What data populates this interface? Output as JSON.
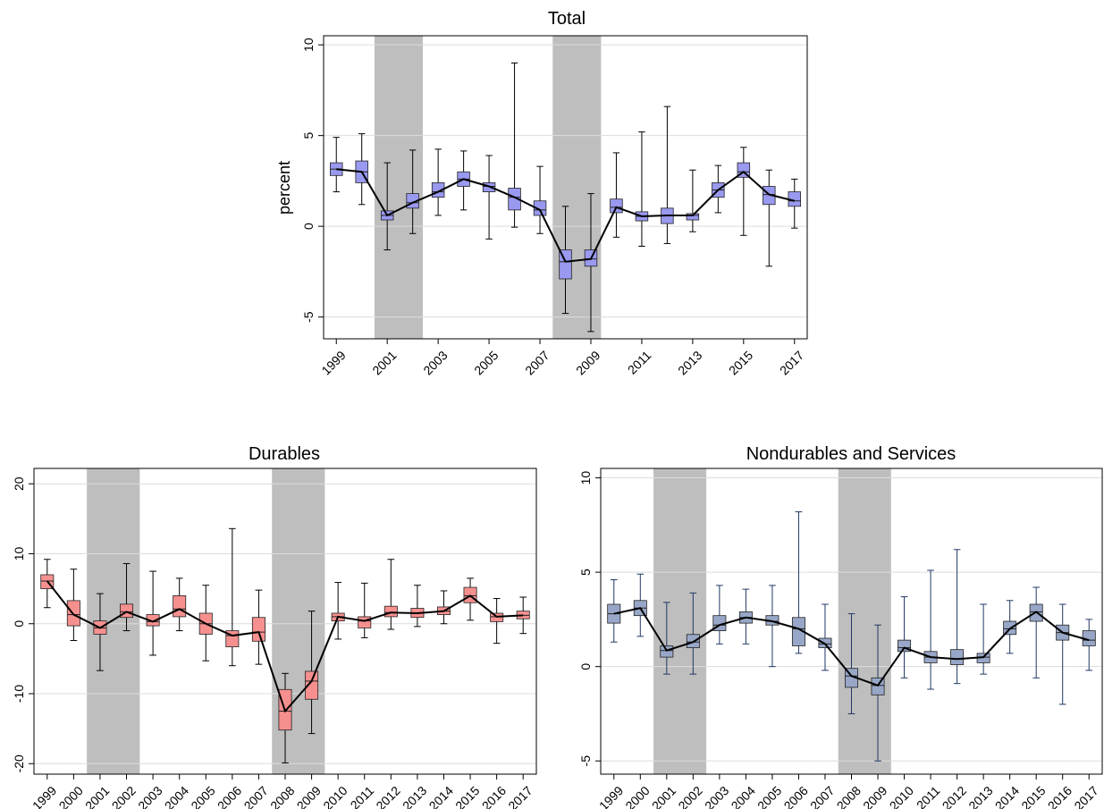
{
  "colors": {
    "recession_band": "#bebebe",
    "grid": "#dcdcdc",
    "total_box": "#9999f0",
    "total_whisker": "#000000",
    "durables_box": "#f5908f",
    "durables_whisker": "#000000",
    "nondurables_box": "#98a7c7",
    "nondurables_whisker": "#1f3864",
    "median_line": "#000000"
  },
  "chart_data": [
    {
      "id": "total",
      "type": "box",
      "title": "Total",
      "ylabel": "percent",
      "ylim": [
        -6.2,
        10.5
      ],
      "yticks": [
        -5,
        0,
        5,
        10
      ],
      "years": [
        1999,
        2000,
        2001,
        2002,
        2003,
        2004,
        2005,
        2006,
        2007,
        2008,
        2009,
        2010,
        2011,
        2012,
        2013,
        2014,
        2015,
        2016,
        2017
      ],
      "xtick_labels": [
        "1999",
        "2001",
        "2003",
        "2005",
        "2007",
        "2009",
        "2011",
        "2013",
        "2015",
        "2017"
      ],
      "recessions": [
        [
          2001,
          2002
        ],
        [
          2008,
          2009
        ]
      ],
      "boxes": [
        {
          "year": 1999,
          "whisker_low": 1.9,
          "q1": 2.8,
          "median": 3.15,
          "q3": 3.5,
          "whisker_high": 4.9
        },
        {
          "year": 2000,
          "whisker_low": 1.2,
          "q1": 2.4,
          "median": 3.0,
          "q3": 3.6,
          "whisker_high": 5.1
        },
        {
          "year": 2001,
          "whisker_low": -1.3,
          "q1": 0.35,
          "median": 0.6,
          "q3": 0.85,
          "whisker_high": 3.5
        },
        {
          "year": 2002,
          "whisker_low": -0.4,
          "q1": 1.0,
          "median": 1.3,
          "q3": 1.8,
          "whisker_high": 4.2
        },
        {
          "year": 2003,
          "whisker_low": 0.6,
          "q1": 1.6,
          "median": 1.9,
          "q3": 2.4,
          "whisker_high": 4.25
        },
        {
          "year": 2004,
          "whisker_low": 0.9,
          "q1": 2.2,
          "median": 2.6,
          "q3": 3.0,
          "whisker_high": 4.15
        },
        {
          "year": 2005,
          "whisker_low": -0.7,
          "q1": 1.9,
          "median": 2.2,
          "q3": 2.4,
          "whisker_high": 3.9
        },
        {
          "year": 2006,
          "whisker_low": -0.05,
          "q1": 0.9,
          "median": 1.6,
          "q3": 2.1,
          "whisker_high": 9.0
        },
        {
          "year": 2007,
          "whisker_low": -0.4,
          "q1": 0.6,
          "median": 0.9,
          "q3": 1.4,
          "whisker_high": 3.3
        },
        {
          "year": 2008,
          "whisker_low": -4.8,
          "q1": -2.9,
          "median": -1.95,
          "q3": -1.3,
          "whisker_high": 1.1
        },
        {
          "year": 2009,
          "whisker_low": -5.8,
          "q1": -2.2,
          "median": -1.8,
          "q3": -1.3,
          "whisker_high": 1.8
        },
        {
          "year": 2010,
          "whisker_low": -0.6,
          "q1": 0.75,
          "median": 1.05,
          "q3": 1.5,
          "whisker_high": 4.05
        },
        {
          "year": 2011,
          "whisker_low": -1.1,
          "q1": 0.3,
          "median": 0.55,
          "q3": 0.8,
          "whisker_high": 5.2
        },
        {
          "year": 2012,
          "whisker_low": -0.95,
          "q1": 0.15,
          "median": 0.6,
          "q3": 1.0,
          "whisker_high": 6.6
        },
        {
          "year": 2013,
          "whisker_low": -0.3,
          "q1": 0.35,
          "median": 0.6,
          "q3": 0.7,
          "whisker_high": 3.1
        },
        {
          "year": 2014,
          "whisker_low": 0.75,
          "q1": 1.6,
          "median": 2.0,
          "q3": 2.4,
          "whisker_high": 3.35
        },
        {
          "year": 2015,
          "whisker_low": -0.5,
          "q1": 2.7,
          "median": 3.0,
          "q3": 3.5,
          "whisker_high": 4.35
        },
        {
          "year": 2016,
          "whisker_low": -2.2,
          "q1": 1.2,
          "median": 1.75,
          "q3": 2.2,
          "whisker_high": 3.1
        },
        {
          "year": 2017,
          "whisker_low": -0.1,
          "q1": 1.1,
          "median": 1.4,
          "q3": 1.9,
          "whisker_high": 2.6
        }
      ]
    },
    {
      "id": "durables",
      "type": "box",
      "title": "Durables",
      "ylabel": "",
      "ylim": [
        -21.5,
        22.2
      ],
      "yticks": [
        -20,
        -10,
        0,
        10,
        20
      ],
      "years": [
        1999,
        2000,
        2001,
        2002,
        2003,
        2004,
        2005,
        2006,
        2007,
        2008,
        2009,
        2010,
        2011,
        2012,
        2013,
        2014,
        2015,
        2016,
        2017
      ],
      "xtick_labels": [
        "1999",
        "2000",
        "2001",
        "2002",
        "2003",
        "2004",
        "2005",
        "2006",
        "2007",
        "2008",
        "2009",
        "2010",
        "2011",
        "2012",
        "2013",
        "2014",
        "2015",
        "2016",
        "2017"
      ],
      "recessions": [
        [
          2001,
          2002
        ],
        [
          2008,
          2009
        ]
      ],
      "boxes": [
        {
          "year": 1999,
          "whisker_low": 2.3,
          "q1": 5.0,
          "median": 6.1,
          "q3": 7.0,
          "whisker_high": 9.2
        },
        {
          "year": 2000,
          "whisker_low": -2.4,
          "q1": -0.3,
          "median": 1.3,
          "q3": 3.3,
          "whisker_high": 7.8
        },
        {
          "year": 2001,
          "whisker_low": -6.7,
          "q1": -1.5,
          "median": -0.6,
          "q3": 0.4,
          "whisker_high": 4.3
        },
        {
          "year": 2002,
          "whisker_low": -1.0,
          "q1": 0.9,
          "median": 1.7,
          "q3": 2.8,
          "whisker_high": 8.6
        },
        {
          "year": 2003,
          "whisker_low": -4.5,
          "q1": -0.3,
          "median": 0.3,
          "q3": 1.3,
          "whisker_high": 7.5
        },
        {
          "year": 2004,
          "whisker_low": -1.0,
          "q1": 1.0,
          "median": 2.1,
          "q3": 4.0,
          "whisker_high": 6.5
        },
        {
          "year": 2005,
          "whisker_low": -5.3,
          "q1": -1.5,
          "median": 0.0,
          "q3": 1.5,
          "whisker_high": 5.5
        },
        {
          "year": 2006,
          "whisker_low": -6.0,
          "q1": -3.3,
          "median": -1.7,
          "q3": -1.0,
          "whisker_high": 13.6
        },
        {
          "year": 2007,
          "whisker_low": -5.8,
          "q1": -2.5,
          "median": -1.2,
          "q3": 0.9,
          "whisker_high": 4.8
        },
        {
          "year": 2008,
          "whisker_low": -19.9,
          "q1": -15.2,
          "median": -12.5,
          "q3": -9.4,
          "whisker_high": -7.1
        },
        {
          "year": 2009,
          "whisker_low": -15.7,
          "q1": -10.8,
          "median": -8.2,
          "q3": -6.8,
          "whisker_high": 1.8
        },
        {
          "year": 2010,
          "whisker_low": -2.2,
          "q1": 0.4,
          "median": 1.0,
          "q3": 1.5,
          "whisker_high": 5.9
        },
        {
          "year": 2011,
          "whisker_low": -2.0,
          "q1": -0.6,
          "median": 0.4,
          "q3": 1.0,
          "whisker_high": 5.8
        },
        {
          "year": 2012,
          "whisker_low": -0.8,
          "q1": 1.0,
          "median": 1.6,
          "q3": 2.5,
          "whisker_high": 9.2
        },
        {
          "year": 2013,
          "whisker_low": -0.4,
          "q1": 0.9,
          "median": 1.5,
          "q3": 2.2,
          "whisker_high": 5.5
        },
        {
          "year": 2014,
          "whisker_low": 0.0,
          "q1": 1.3,
          "median": 1.8,
          "q3": 2.4,
          "whisker_high": 4.7
        },
        {
          "year": 2015,
          "whisker_low": 0.5,
          "q1": 3.0,
          "median": 4.0,
          "q3": 5.2,
          "whisker_high": 6.5
        },
        {
          "year": 2016,
          "whisker_low": -2.8,
          "q1": 0.3,
          "median": 1.0,
          "q3": 1.5,
          "whisker_high": 3.6
        },
        {
          "year": 2017,
          "whisker_low": -1.4,
          "q1": 0.7,
          "median": 1.2,
          "q3": 1.8,
          "whisker_high": 3.8
        }
      ]
    },
    {
      "id": "nondurables",
      "type": "box",
      "title": "Nondurables and Services",
      "ylabel": "",
      "ylim": [
        -5.7,
        10.5
      ],
      "yticks": [
        -5,
        0,
        5,
        10
      ],
      "years": [
        1999,
        2000,
        2001,
        2002,
        2003,
        2004,
        2005,
        2006,
        2007,
        2008,
        2009,
        2010,
        2011,
        2012,
        2013,
        2014,
        2015,
        2016,
        2017
      ],
      "xtick_labels": [
        "1999",
        "2000",
        "2001",
        "2002",
        "2003",
        "2004",
        "2005",
        "2006",
        "2007",
        "2008",
        "2009",
        "2010",
        "2011",
        "2012",
        "2013",
        "2014",
        "2015",
        "2016",
        "2017"
      ],
      "recessions": [
        [
          2001,
          2002
        ],
        [
          2008,
          2009
        ]
      ],
      "boxes": [
        {
          "year": 1999,
          "whisker_low": 1.3,
          "q1": 2.3,
          "median": 2.8,
          "q3": 3.3,
          "whisker_high": 4.6
        },
        {
          "year": 2000,
          "whisker_low": 1.6,
          "q1": 2.7,
          "median": 3.1,
          "q3": 3.5,
          "whisker_high": 4.9
        },
        {
          "year": 2001,
          "whisker_low": -0.4,
          "q1": 0.5,
          "median": 0.85,
          "q3": 1.1,
          "whisker_high": 3.4
        },
        {
          "year": 2002,
          "whisker_low": -0.4,
          "q1": 1.0,
          "median": 1.3,
          "q3": 1.7,
          "whisker_high": 3.9
        },
        {
          "year": 2003,
          "whisker_low": 1.2,
          "q1": 1.9,
          "median": 2.2,
          "q3": 2.7,
          "whisker_high": 4.3
        },
        {
          "year": 2004,
          "whisker_low": 1.2,
          "q1": 2.3,
          "median": 2.6,
          "q3": 2.9,
          "whisker_high": 4.1
        },
        {
          "year": 2005,
          "whisker_low": 0.0,
          "q1": 2.2,
          "median": 2.4,
          "q3": 2.7,
          "whisker_high": 4.3
        },
        {
          "year": 2006,
          "whisker_low": 0.7,
          "q1": 1.1,
          "median": 2.0,
          "q3": 2.6,
          "whisker_high": 8.2
        },
        {
          "year": 2007,
          "whisker_low": -0.2,
          "q1": 1.0,
          "median": 1.2,
          "q3": 1.5,
          "whisker_high": 3.3
        },
        {
          "year": 2008,
          "whisker_low": -2.5,
          "q1": -1.1,
          "median": -0.5,
          "q3": -0.1,
          "whisker_high": 2.8
        },
        {
          "year": 2009,
          "whisker_low": -5.0,
          "q1": -1.5,
          "median": -1.0,
          "q3": -0.6,
          "whisker_high": 2.2
        },
        {
          "year": 2010,
          "whisker_low": -0.6,
          "q1": 0.8,
          "median": 1.0,
          "q3": 1.4,
          "whisker_high": 3.7
        },
        {
          "year": 2011,
          "whisker_low": -1.2,
          "q1": 0.2,
          "median": 0.5,
          "q3": 0.8,
          "whisker_high": 5.1
        },
        {
          "year": 2012,
          "whisker_low": -0.9,
          "q1": 0.1,
          "median": 0.4,
          "q3": 0.9,
          "whisker_high": 6.2
        },
        {
          "year": 2013,
          "whisker_low": -0.4,
          "q1": 0.2,
          "median": 0.5,
          "q3": 0.7,
          "whisker_high": 3.3
        },
        {
          "year": 2014,
          "whisker_low": 0.7,
          "q1": 1.7,
          "median": 2.0,
          "q3": 2.4,
          "whisker_high": 3.5
        },
        {
          "year": 2015,
          "whisker_low": -0.6,
          "q1": 2.4,
          "median": 2.9,
          "q3": 3.3,
          "whisker_high": 4.2
        },
        {
          "year": 2016,
          "whisker_low": -2.0,
          "q1": 1.4,
          "median": 1.8,
          "q3": 2.2,
          "whisker_high": 3.3
        },
        {
          "year": 2017,
          "whisker_low": -0.2,
          "q1": 1.1,
          "median": 1.4,
          "q3": 1.9,
          "whisker_high": 2.5
        }
      ]
    }
  ]
}
